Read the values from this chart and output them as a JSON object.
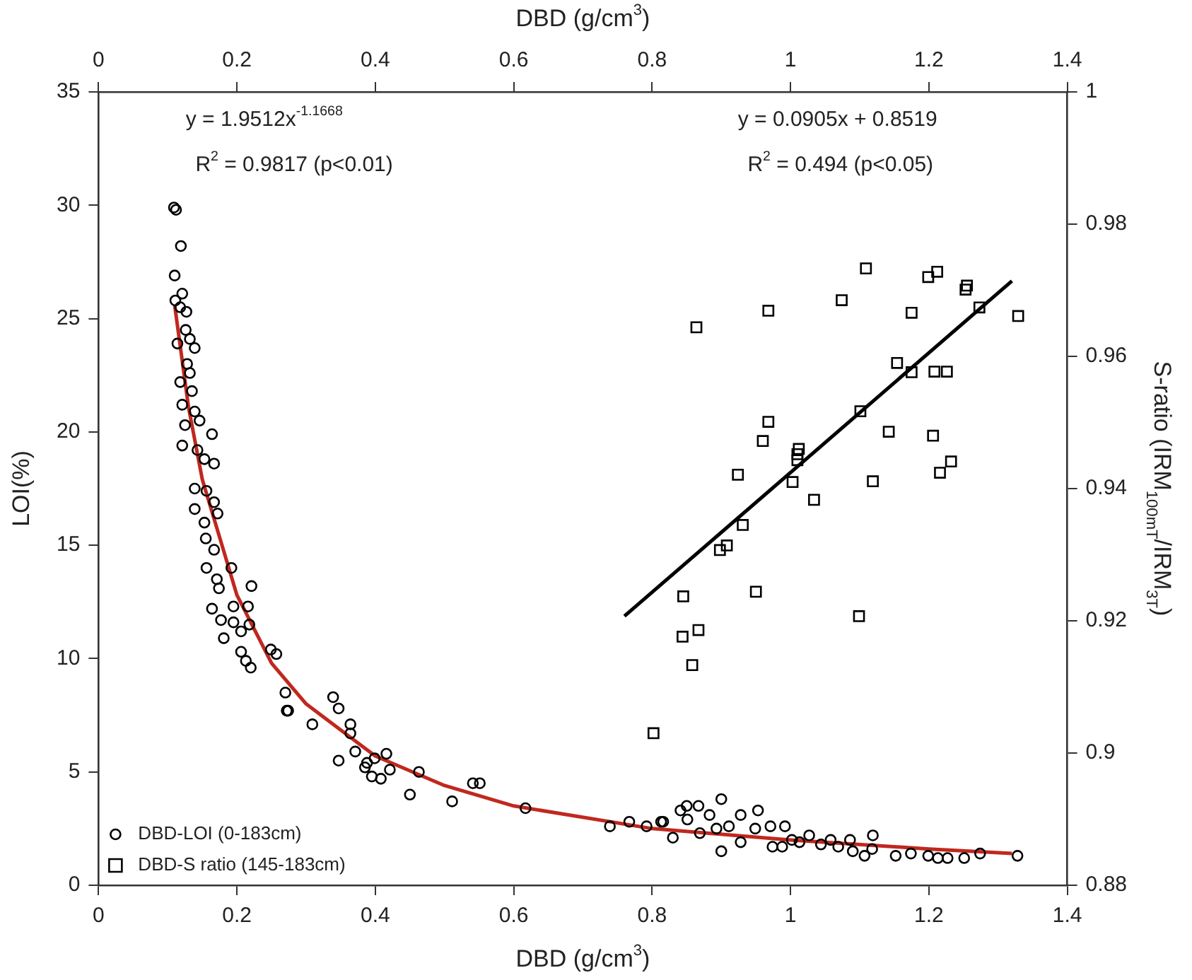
{
  "chart_data": {
    "type": "scatter",
    "xlabel": "DBD (g/cm$^{3}$)",
    "x2label": "DBD (g/cm$^{3}$)",
    "ylabel": "LOI(%)",
    "y2label": "S-ratio (IRM$_{100mT}$/IRM$_{3T}$)",
    "xlim": [
      0,
      1.4
    ],
    "xticks": [
      0,
      0.2,
      0.4,
      0.6,
      0.8,
      1,
      1.2,
      1.4
    ],
    "x2lim": [
      0,
      1.4
    ],
    "x2ticks": [
      0,
      0.2,
      0.4,
      0.6,
      0.8,
      1,
      1.2,
      1.4
    ],
    "ylim": [
      0,
      35
    ],
    "yticks": [
      0,
      5,
      10,
      15,
      20,
      25,
      30,
      35
    ],
    "y2lim": [
      0.88,
      1
    ],
    "y2ticks": [
      0.88,
      0.9,
      0.92,
      0.94,
      0.96,
      0.98,
      1
    ],
    "grid": false,
    "legend": "bottom left",
    "annotations": [
      "y = 1.9512x$^{-1.1668}$",
      "R$^{2}$ = 0.9817 (p<0.01)",
      "y = 0.0905x + 0.8519",
      "R$^{2}$ = 0.494 (p<0.05)"
    ],
    "series": [
      {
        "name": "DBD-LOI (0-183cm)",
        "type": "scatter",
        "marker": "circle",
        "color": "#000000",
        "x": [
          0.109,
          0.112,
          0.119,
          0.11,
          0.121,
          0.111,
          0.118,
          0.127,
          0.126,
          0.132,
          0.139,
          0.114,
          0.128,
          0.132,
          0.118,
          0.135,
          0.121,
          0.139,
          0.146,
          0.125,
          0.164,
          0.121,
          0.143,
          0.153,
          0.167,
          0.139,
          0.156,
          0.139,
          0.167,
          0.153,
          0.172,
          0.155,
          0.167,
          0.156,
          0.192,
          0.171,
          0.174,
          0.221,
          0.164,
          0.195,
          0.216,
          0.177,
          0.195,
          0.218,
          0.181,
          0.206,
          0.206,
          0.213,
          0.22,
          0.249,
          0.257,
          0.27,
          0.272,
          0.309,
          0.274,
          0.339,
          0.347,
          0.364,
          0.364,
          0.371,
          0.347,
          0.388,
          0.399,
          0.416,
          0.385,
          0.395,
          0.408,
          0.421,
          0.463,
          0.45,
          0.511,
          0.541,
          0.551,
          0.617,
          0.739,
          0.767,
          0.792,
          0.816,
          0.83,
          0.813,
          0.841,
          0.85,
          0.867,
          0.851,
          0.869,
          0.883,
          0.9,
          0.9,
          0.893,
          0.911,
          0.928,
          0.928,
          0.949,
          0.953,
          0.971,
          0.974,
          0.992,
          0.988,
          1.002,
          1.013,
          1.027,
          1.044,
          1.058,
          1.069,
          1.086,
          1.09,
          1.107,
          1.119,
          1.118,
          1.152,
          1.174,
          1.199,
          1.213,
          1.227,
          1.251,
          1.274,
          1.328
        ],
        "values": [
          29.9,
          29.8,
          28.2,
          26.9,
          26.1,
          25.8,
          25.5,
          25.3,
          24.5,
          24.1,
          23.7,
          23.9,
          23.0,
          22.6,
          22.2,
          21.8,
          21.2,
          20.9,
          20.5,
          20.3,
          19.9,
          19.4,
          19.2,
          18.8,
          18.6,
          17.5,
          17.4,
          16.6,
          16.9,
          16.0,
          16.4,
          15.3,
          14.8,
          14.0,
          14.0,
          13.5,
          13.1,
          13.2,
          12.2,
          12.3,
          12.3,
          11.7,
          11.6,
          11.5,
          10.9,
          11.2,
          10.3,
          9.9,
          9.6,
          10.4,
          10.2,
          8.5,
          7.7,
          7.1,
          7.7,
          8.3,
          7.8,
          7.1,
          6.7,
          5.9,
          5.5,
          5.4,
          5.6,
          5.8,
          5.2,
          4.8,
          4.7,
          5.1,
          5.0,
          4.0,
          3.7,
          4.5,
          4.5,
          3.4,
          2.6,
          2.8,
          2.6,
          2.8,
          2.1,
          2.8,
          3.3,
          3.5,
          3.5,
          2.9,
          2.3,
          3.1,
          3.8,
          1.5,
          2.5,
          2.6,
          3.1,
          1.9,
          2.5,
          3.3,
          2.6,
          1.7,
          2.6,
          1.7,
          2.0,
          1.9,
          2.2,
          1.8,
          2.0,
          1.7,
          2.0,
          1.5,
          1.3,
          2.2,
          1.6,
          1.3,
          1.4,
          1.3,
          1.2,
          1.2,
          1.2,
          1.4,
          1.3
        ]
      },
      {
        "name": "DBD-S ratio (145-183cm)",
        "type": "scatter",
        "marker": "square",
        "axis": "y2",
        "color": "#000000",
        "x": [
          0.864,
          0.968,
          1.074,
          1.109,
          1.199,
          1.212,
          1.255,
          1.253,
          1.273,
          1.329,
          1.175,
          1.154,
          1.175,
          1.208,
          1.226,
          1.101,
          1.142,
          1.206,
          1.232,
          1.216,
          1.119,
          0.968,
          0.96,
          1.012,
          1.01,
          1.01,
          1.003,
          1.034,
          0.924,
          0.931,
          0.908,
          0.898,
          0.95,
          0.845,
          1.099,
          0.867,
          0.844,
          0.858,
          0.802
        ],
        "values": [
          0.9644,
          0.9669,
          0.9685,
          0.9733,
          0.972,
          0.9728,
          0.9707,
          0.9701,
          0.9674,
          0.9661,
          0.9666,
          0.959,
          0.9576,
          0.9577,
          0.9577,
          0.9517,
          0.9486,
          0.948,
          0.9441,
          0.9424,
          0.9411,
          0.9501,
          0.9472,
          0.946,
          0.9452,
          0.9443,
          0.941,
          0.9383,
          0.9421,
          0.9345,
          0.9314,
          0.9307,
          0.9244,
          0.9237,
          0.9207,
          0.9186,
          0.9176,
          0.9133,
          0.903
        ]
      },
      {
        "type": "line",
        "marker": "none",
        "color": "#c0281e",
        "x": [
          0.11,
          0.13,
          0.15,
          0.2,
          0.25,
          0.3,
          0.4,
          0.5,
          0.6,
          0.8,
          1.0,
          1.2,
          1.32
        ],
        "values": [
          25.6,
          21.1,
          17.9,
          12.8,
          9.8,
          8.0,
          5.7,
          4.4,
          3.5,
          2.5,
          2.0,
          1.6,
          1.4
        ]
      },
      {
        "type": "line",
        "marker": "none",
        "axis": "y2",
        "color": "#000000",
        "x": [
          0.76,
          1.32
        ],
        "values": [
          0.9207,
          0.9714
        ]
      }
    ]
  }
}
